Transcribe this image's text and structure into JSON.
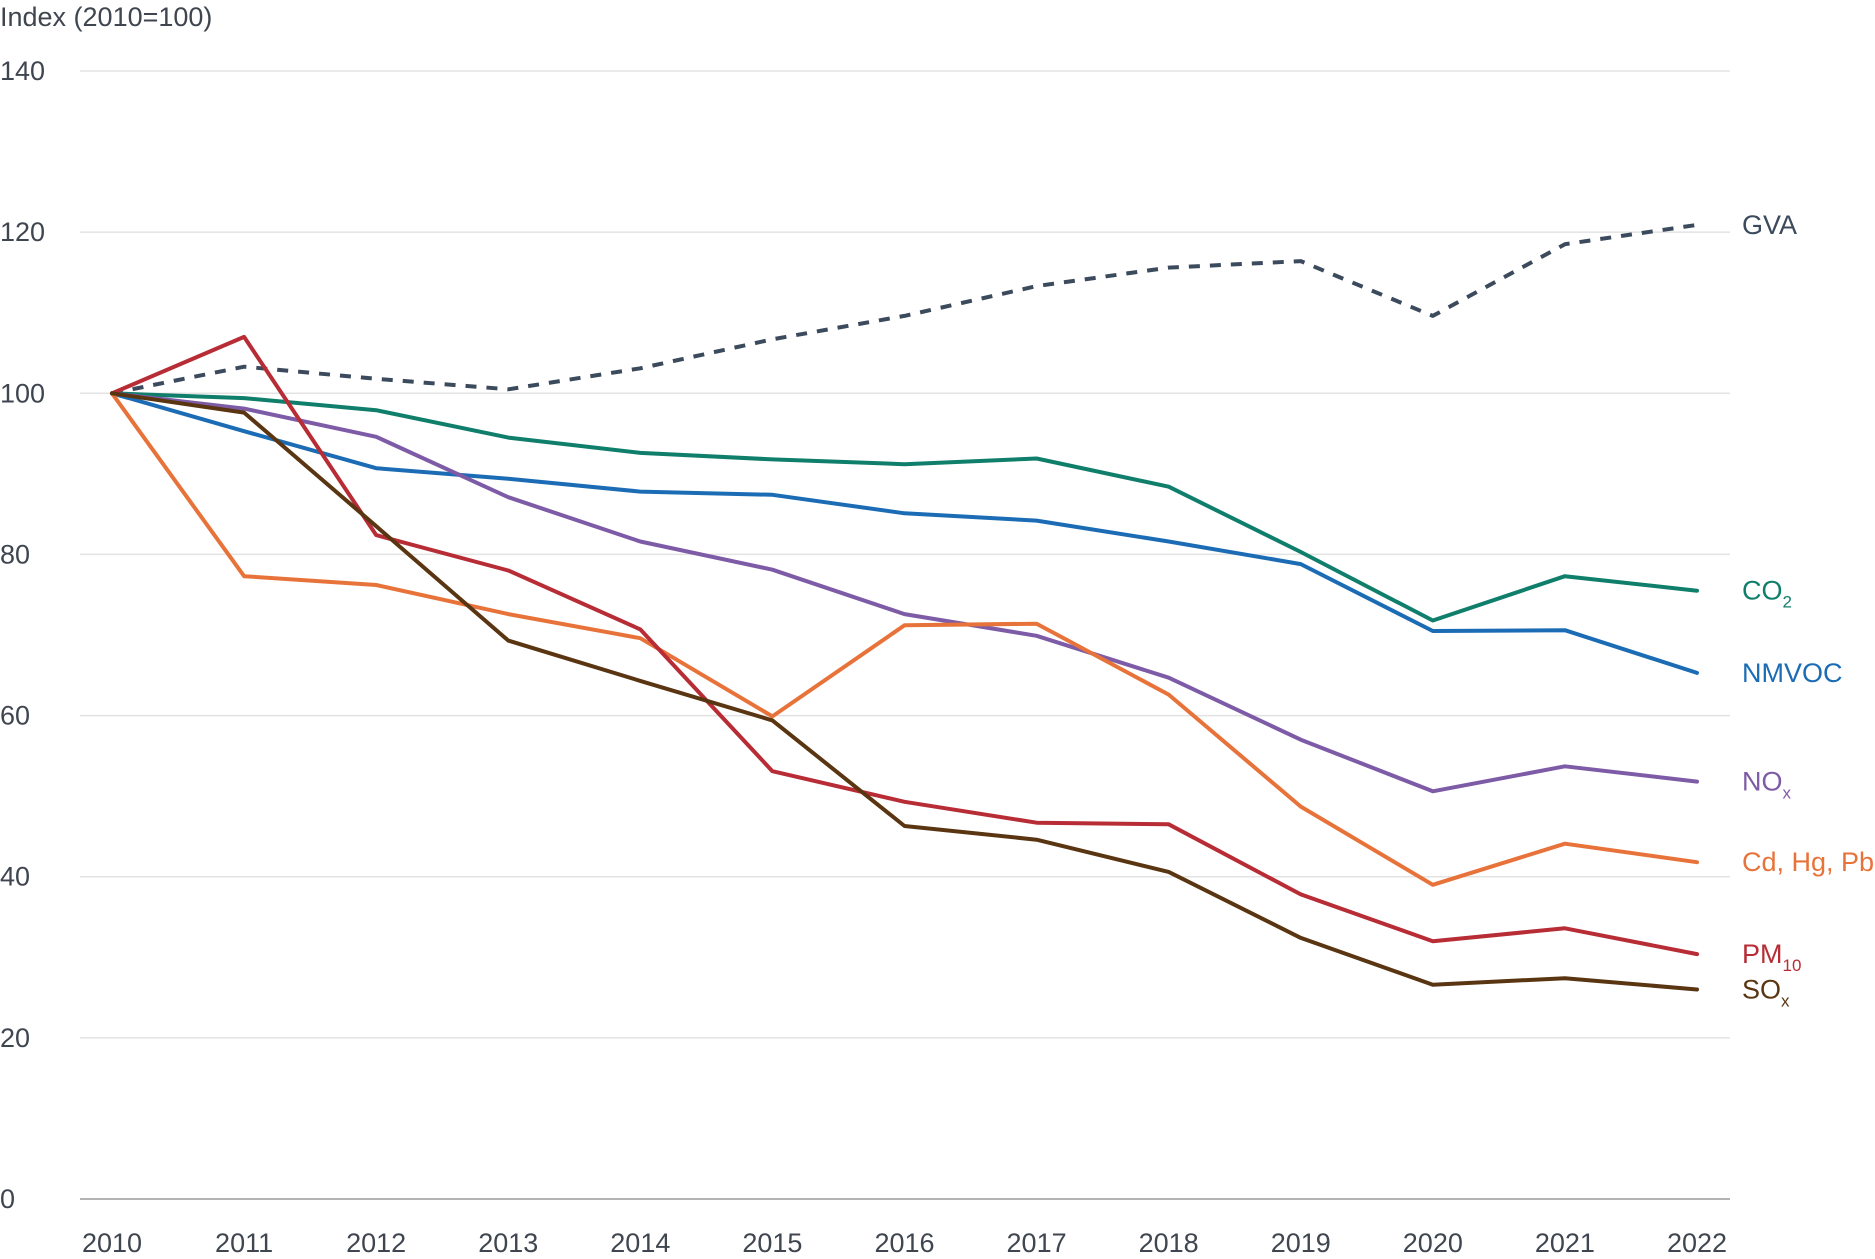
{
  "chart_data": {
    "type": "line",
    "ylabel": "Index (2010=100)",
    "ylim": [
      0,
      140
    ],
    "yticks": [
      0,
      20,
      40,
      60,
      80,
      100,
      120,
      140
    ],
    "x": [
      "2010",
      "2011",
      "2012",
      "2013",
      "2014",
      "2015",
      "2016",
      "2017",
      "2018",
      "2019",
      "2020",
      "2021",
      "2022"
    ],
    "grid": true,
    "legend": "inline-right",
    "series": [
      {
        "name": "GVA",
        "label_sub": "",
        "color": "#3b4a5c",
        "dashed": true,
        "values": [
          100,
          103.3,
          101.8,
          100.5,
          103.1,
          106.7,
          109.6,
          113.3,
          115.6,
          116.4,
          109.6,
          118.5,
          120.9
        ]
      },
      {
        "name": "CO",
        "label_sub": "2",
        "color": "#0f7e6b",
        "dashed": false,
        "values": [
          100,
          99.4,
          97.9,
          94.5,
          92.6,
          91.8,
          91.2,
          91.9,
          88.4,
          80.3,
          71.8,
          77.3,
          75.5
        ]
      },
      {
        "name": "NMVOC",
        "label_sub": "",
        "color": "#1b6cb5",
        "dashed": false,
        "values": [
          100,
          95.3,
          90.7,
          89.4,
          87.8,
          87.4,
          85.1,
          84.2,
          81.6,
          78.8,
          70.5,
          70.6,
          65.3
        ]
      },
      {
        "name": "NO",
        "label_sub": "x",
        "color": "#7d5ba6",
        "dashed": false,
        "values": [
          100,
          98.1,
          94.6,
          87.1,
          81.6,
          78.1,
          72.6,
          69.9,
          64.7,
          57.0,
          50.6,
          53.7,
          51.8
        ]
      },
      {
        "name": "Cd, Hg, Pb",
        "label_sub": "",
        "color": "#e8733a",
        "dashed": false,
        "values": [
          100,
          77.3,
          76.2,
          72.6,
          69.6,
          59.9,
          71.2,
          71.4,
          62.6,
          48.7,
          39.0,
          44.1,
          41.8
        ]
      },
      {
        "name": "PM",
        "label_sub": "10",
        "color": "#b72c35",
        "dashed": false,
        "values": [
          100,
          107.0,
          82.4,
          78.0,
          70.7,
          53.1,
          49.3,
          46.7,
          46.5,
          37.8,
          32.0,
          33.6,
          30.4
        ]
      },
      {
        "name": "SO",
        "label_sub": "x",
        "color": "#5a3512",
        "dashed": false,
        "values": [
          100,
          97.6,
          83.5,
          69.3,
          64.3,
          59.4,
          46.3,
          44.6,
          40.6,
          32.4,
          26.6,
          27.4,
          26.0
        ]
      }
    ]
  }
}
